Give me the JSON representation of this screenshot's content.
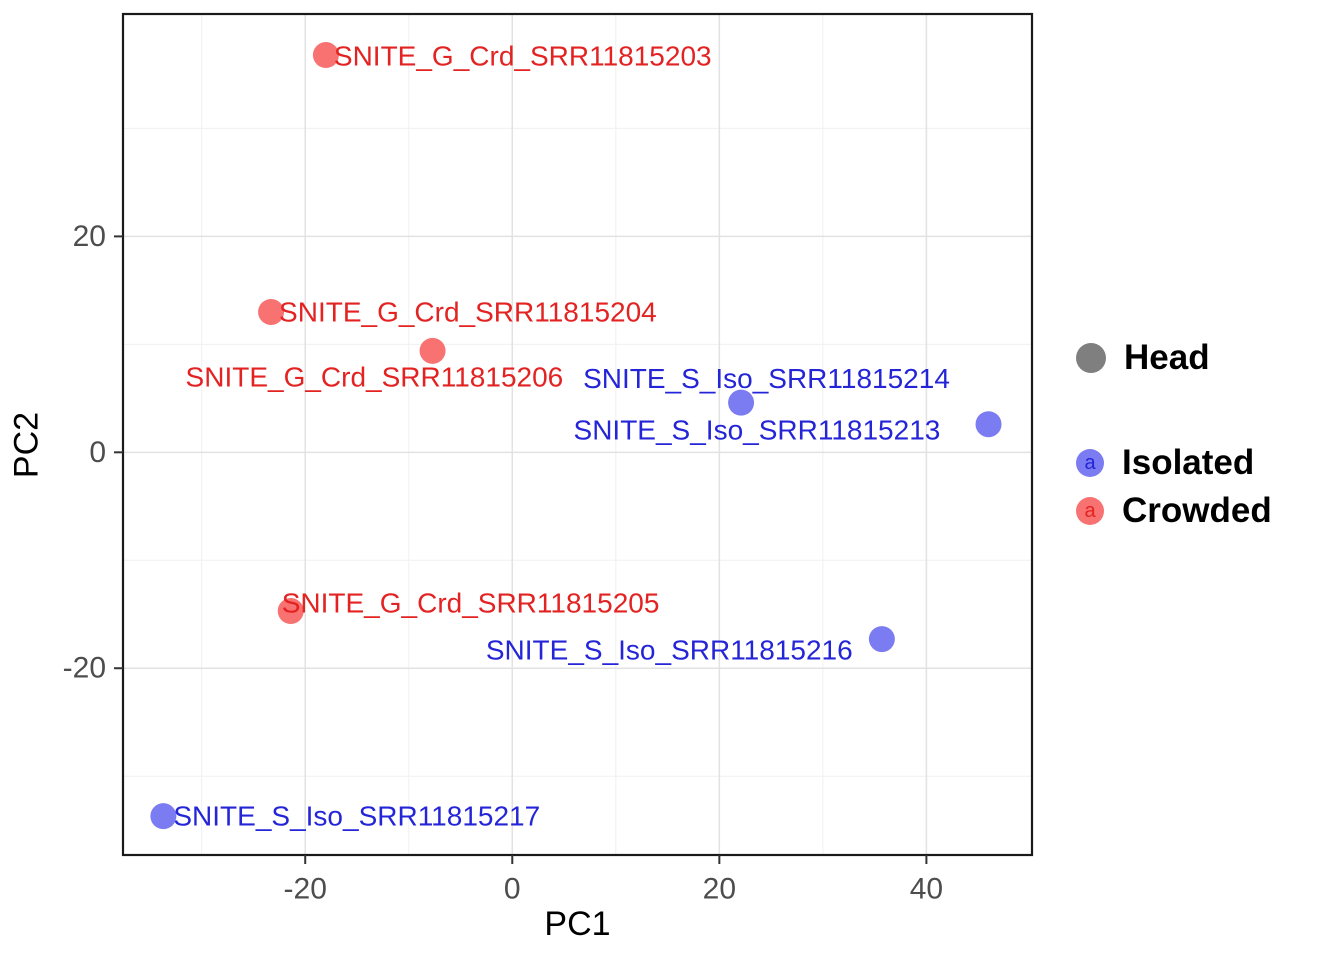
{
  "figure": {
    "kind": "PCA scatter plot"
  },
  "legend": {
    "head": {
      "label": "Head",
      "color": "#7F7F7F"
    },
    "groups": [
      {
        "label": "Isolated",
        "key_glyph": "a",
        "point_color": "#7B7BF2",
        "text_color": "#2525D8"
      },
      {
        "label": "Crowded",
        "key_glyph": "a",
        "point_color": "#F87272",
        "text_color": "#E32222"
      }
    ]
  },
  "chart_data": {
    "type": "scatter",
    "title": "",
    "xlabel": "PC1",
    "ylabel": "PC2",
    "xlim": [
      -37.6,
      50.2
    ],
    "ylim": [
      -37.3,
      40.6
    ],
    "x_ticks": [
      -20,
      0,
      20,
      40
    ],
    "y_ticks": [
      -20,
      0,
      20
    ],
    "x_minor": [
      -30,
      -10,
      10,
      30
    ],
    "y_minor": [
      -30,
      -10,
      10,
      30
    ],
    "grid": true,
    "legend_position": "right",
    "point_radius": 13,
    "tick_color": "#4D4D4D",
    "grid_major_color": "#E2E2E2",
    "grid_minor_color": "#F0F0F0",
    "series": [
      {
        "name": "Crowded",
        "point_color": "#F87272",
        "label_color": "#E32222",
        "points": [
          {
            "x": -18.0,
            "y": 36.8,
            "label": "SNITE_G_Crd_SRR11815203",
            "dx": 8,
            "dy": 1
          },
          {
            "x": -23.3,
            "y": 13.0,
            "label": "SNITE_G_Crd_SRR11815204",
            "dx": 8,
            "dy": 0
          },
          {
            "x": -7.7,
            "y": 9.4,
            "label": "SNITE_G_Crd_SRR11815206",
            "dx": -247,
            "dy": 26
          },
          {
            "x": -21.4,
            "y": -14.7,
            "label": "SNITE_G_Crd_SRR11815205",
            "dx": -9,
            "dy": -8
          }
        ]
      },
      {
        "name": "Isolated",
        "point_color": "#7B7BF2",
        "label_color": "#2525D8",
        "points": [
          {
            "x": 22.1,
            "y": 4.6,
            "label": "SNITE_S_Iso_SRR11815214",
            "dx": -158,
            "dy": -24
          },
          {
            "x": 46.0,
            "y": 2.6,
            "label": "SNITE_S_Iso_SRR11815213",
            "dx": -415,
            "dy": 6
          },
          {
            "x": 35.7,
            "y": -17.3,
            "label": "SNITE_S_Iso_SRR11815216",
            "dx": -396,
            "dy": 11
          },
          {
            "x": -33.7,
            "y": -33.7,
            "label": "SNITE_S_Iso_SRR11815217",
            "dx": 10,
            "dy": 0
          }
        ]
      }
    ]
  }
}
